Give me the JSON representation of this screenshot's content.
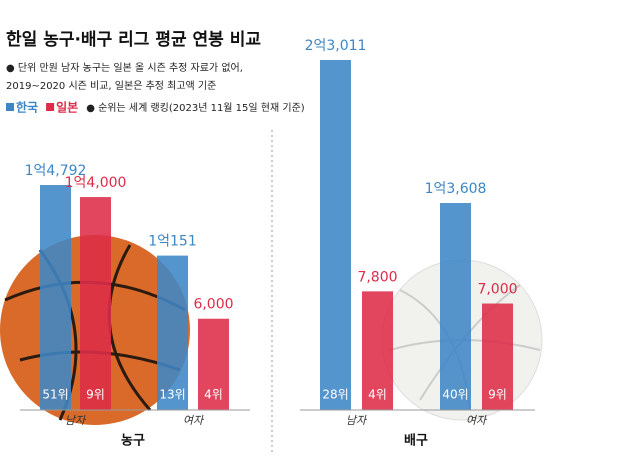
{
  "title": "한일 농구·배구 리그 평균 연봉 비교",
  "notes": [
    "● 단위 만원 남자 농구는 일본 올 시즌 추정 자료가 없어,",
    "2019~2020 시즌 비교, 일본은 추정 최고액 기준"
  ],
  "rank_note": "● 순위는 세계 랭킹(2023년 11월 15일 현재 기준)",
  "chart_data": [
    {
      "type": "bar",
      "title": "농구",
      "categories": [
        "남자",
        "여자"
      ],
      "series": [
        {
          "name": "한국",
          "color": "#3d86c6",
          "values": [
            14792,
            10151
          ],
          "value_labels": [
            "1억4,792",
            "1억151"
          ],
          "rank_labels": [
            "51위",
            "13위"
          ]
        },
        {
          "name": "일본",
          "color": "#dd2c48",
          "values": [
            14000,
            6000
          ],
          "value_labels": [
            "1억4,000",
            "6,000"
          ],
          "rank_labels": [
            "9위",
            "4위"
          ]
        }
      ]
    },
    {
      "type": "bar",
      "title": "배구",
      "categories": [
        "남자",
        "여자"
      ],
      "series": [
        {
          "color": "#3d86c6",
          "values": [
            23011,
            13608
          ],
          "value_labels": [
            "2억3,011",
            "1억3,608"
          ],
          "rank_labels": [
            "28위",
            "40위"
          ]
        },
        {
          "color": "#dd2c48",
          "values": [
            7800,
            7000
          ],
          "value_labels": [
            "7,800",
            "7,000"
          ],
          "rank_labels": [
            "4위",
            "9위"
          ]
        }
      ]
    }
  ]
}
